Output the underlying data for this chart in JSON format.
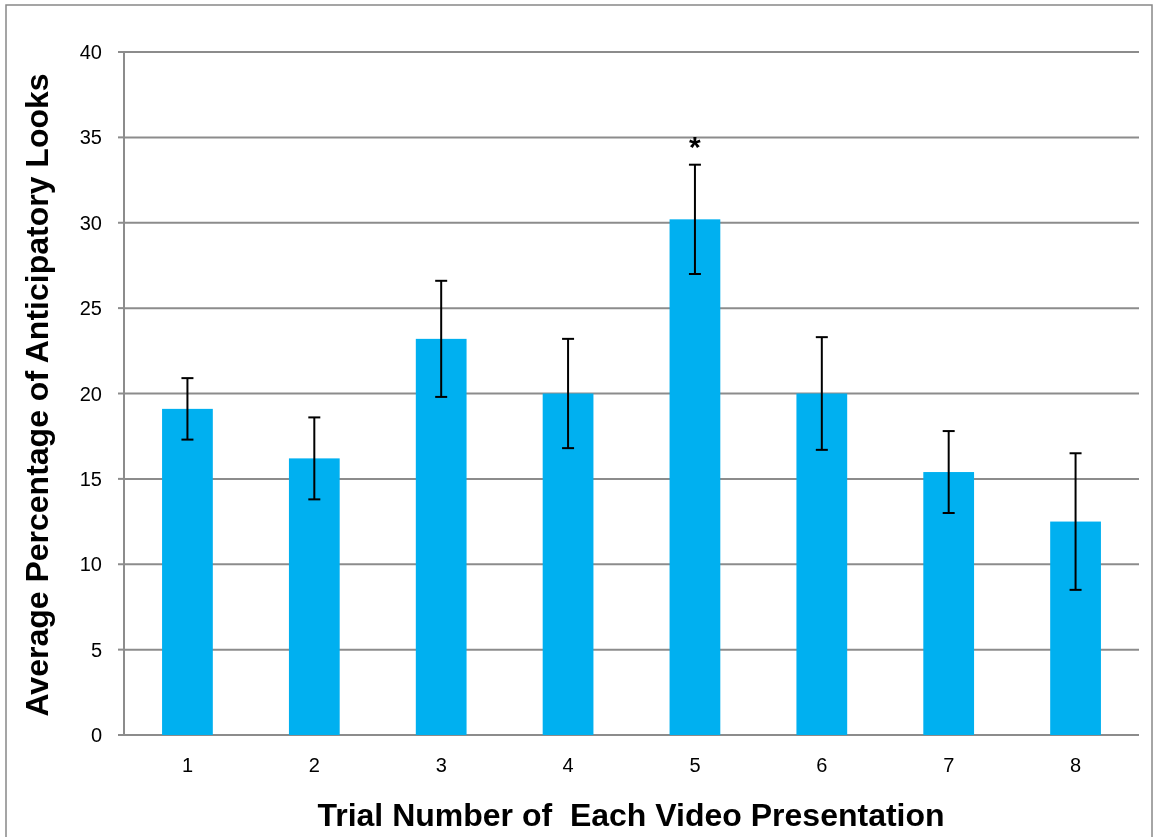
{
  "chart_data": {
    "type": "bar",
    "xlabel": "Trial Number of  Each Video Presentation",
    "ylabel": "Average Percentage of Anticipatory Looks",
    "categories": [
      "1",
      "2",
      "3",
      "4",
      "5",
      "6",
      "7",
      "8"
    ],
    "values": [
      19.1,
      16.2,
      23.2,
      20.0,
      30.2,
      20.0,
      15.4,
      12.5
    ],
    "errors": [
      1.8,
      2.4,
      3.4,
      3.2,
      3.2,
      3.3,
      2.4,
      4.0
    ],
    "color": "#00b0f0",
    "ylim": [
      0,
      40
    ],
    "yticks": [
      0,
      5,
      10,
      15,
      20,
      25,
      30,
      35,
      40
    ],
    "grid": "y",
    "annotations": [
      {
        "text": "*",
        "x": "5",
        "y": 33.4
      }
    ]
  }
}
